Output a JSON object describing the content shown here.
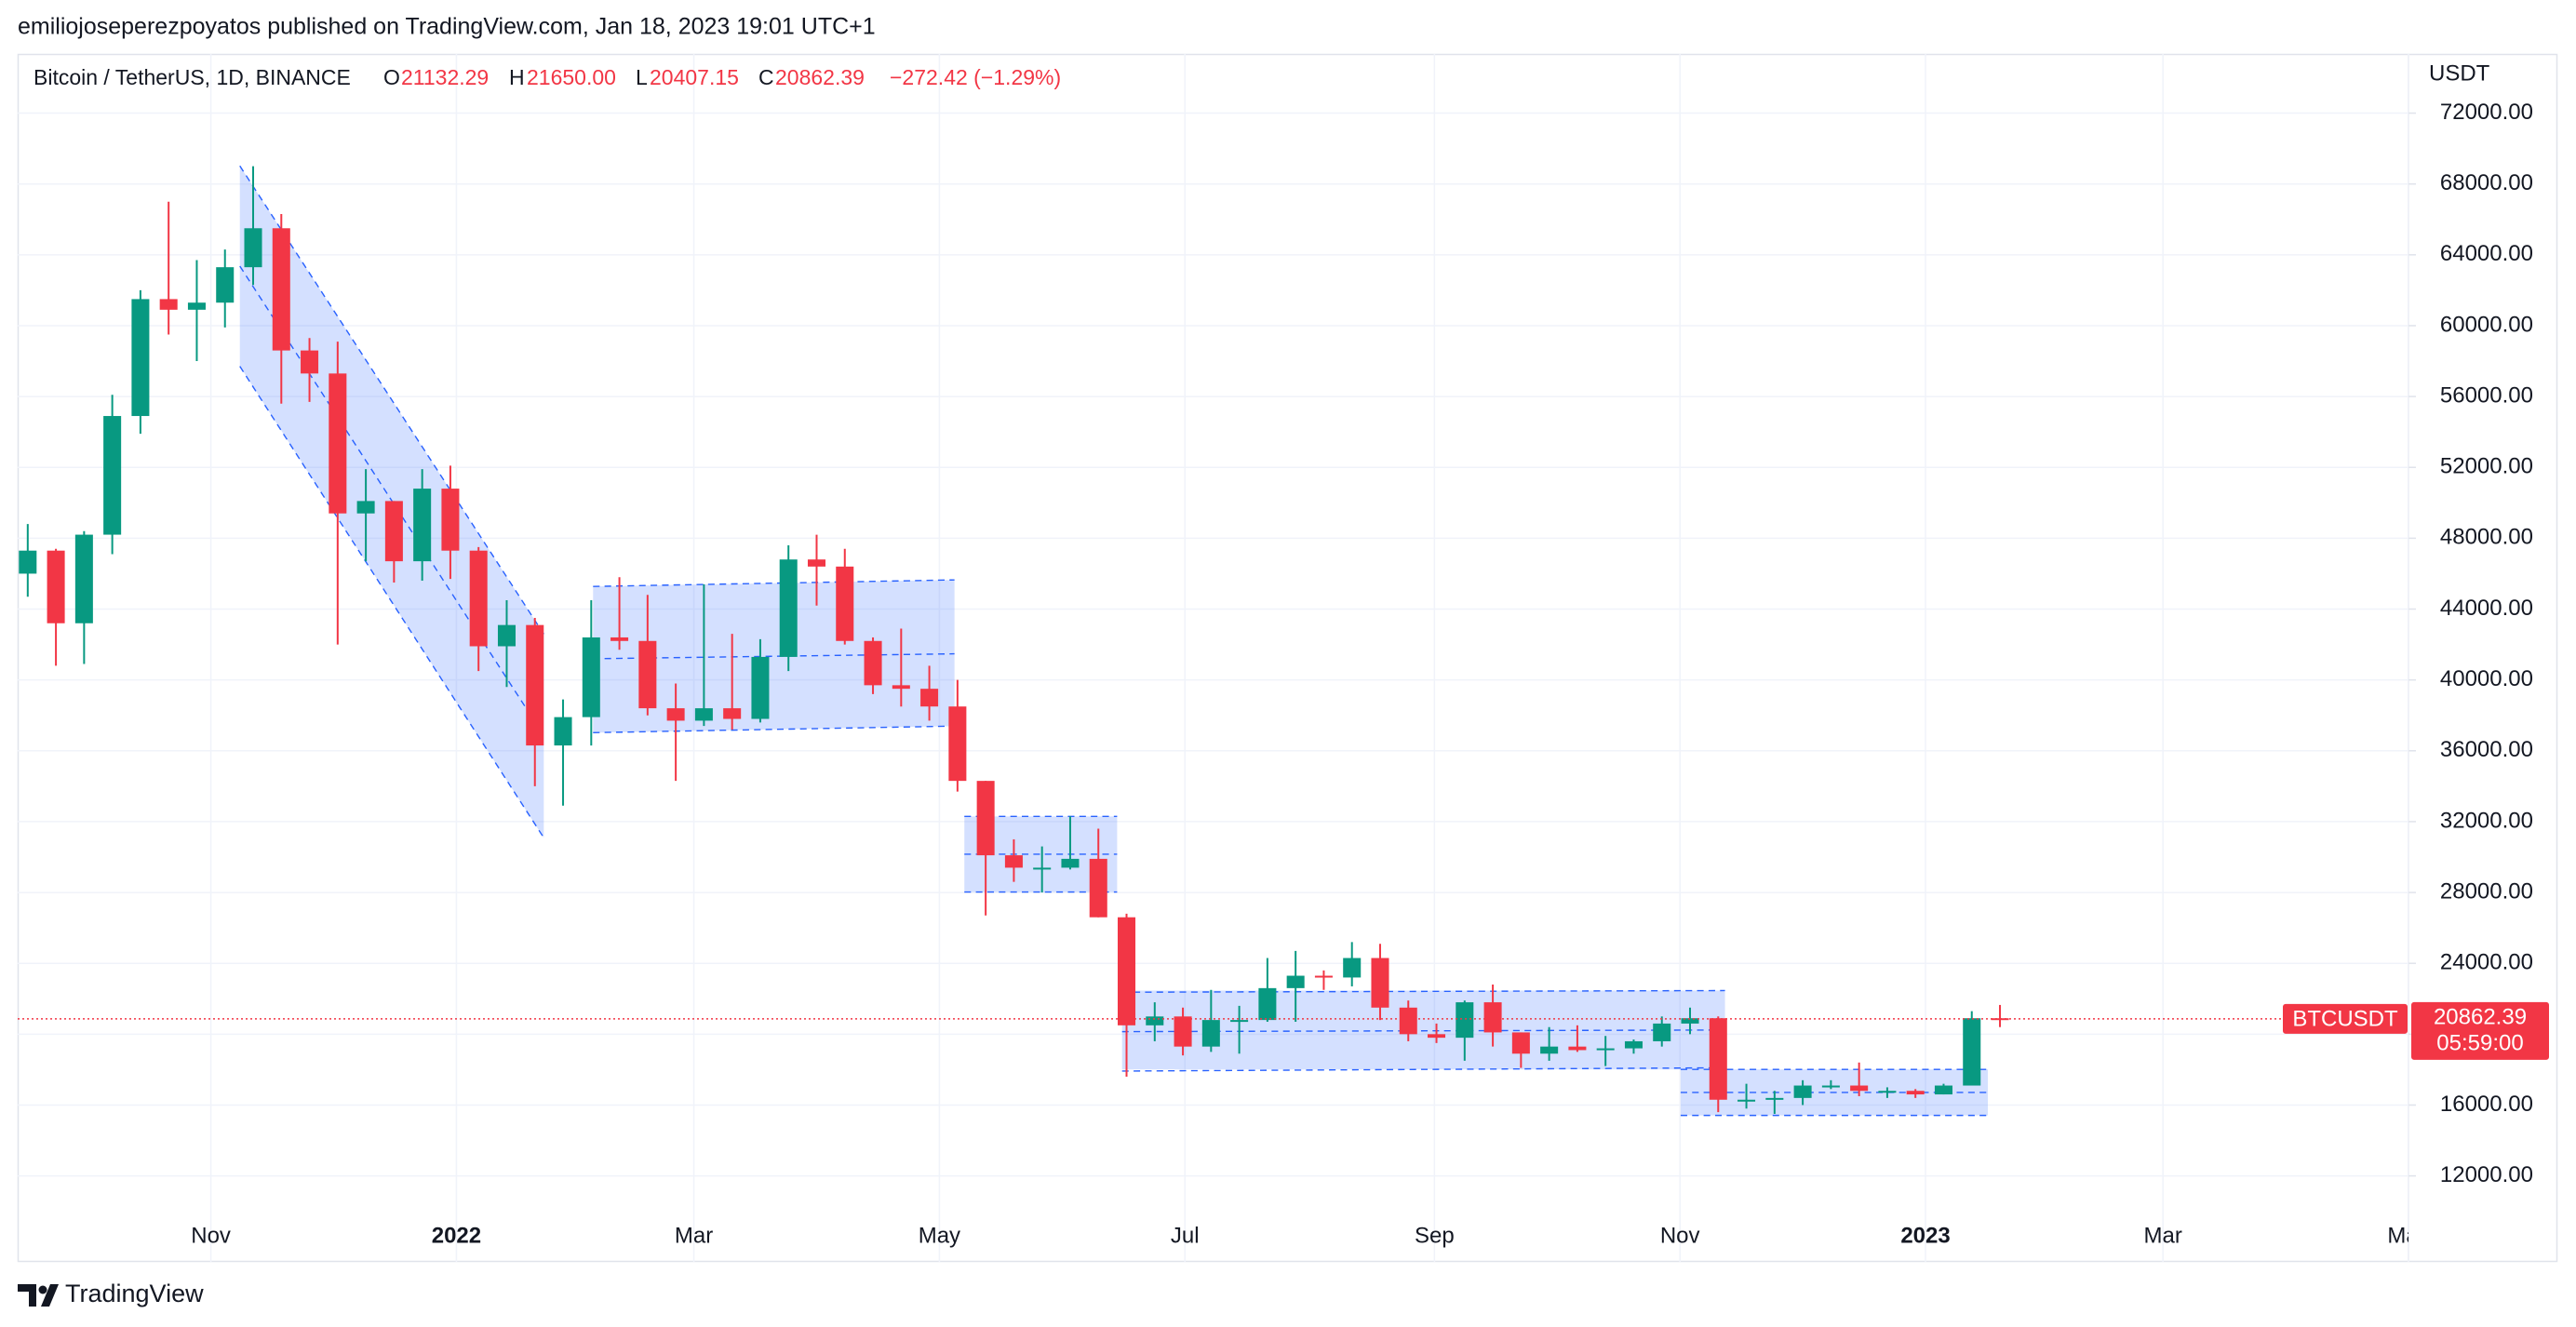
{
  "chart_data": {
    "type": "candlestick",
    "header": "emiliojoseperezpoyatos published on TradingView.com, Jan 18, 2023 19:01 UTC+1",
    "title": "Bitcoin / TetherUS, 1D, BINANCE",
    "legend": {
      "o_label": "O",
      "o": "21132.29",
      "h_label": "H",
      "h": "21650.00",
      "l_label": "L",
      "l": "20407.15",
      "c_label": "C",
      "c": "20862.39",
      "change": "−272.42 (−1.29%)"
    },
    "y_unit": "USDT",
    "symbol": "BTCUSDT",
    "last_price": {
      "value": 20862.39,
      "label": "20862.39"
    },
    "countdown": "05:59:00",
    "footer": "TradingView",
    "up_color": "#089981",
    "down_color": "#f23645",
    "x": [
      "2021-09-13",
      "2021-09-20",
      "2021-09-27",
      "2021-10-04",
      "2021-10-11",
      "2021-10-18",
      "2021-10-25",
      "2021-11-01",
      "2021-11-08",
      "2021-11-15",
      "2021-11-22",
      "2021-11-29",
      "2021-12-06",
      "2021-12-13",
      "2021-12-20",
      "2021-12-27",
      "2022-01-03",
      "2022-01-10",
      "2022-01-17",
      "2022-01-24",
      "2022-01-31",
      "2022-02-07",
      "2022-02-14",
      "2022-02-21",
      "2022-02-28",
      "2022-03-07",
      "2022-03-14",
      "2022-03-21",
      "2022-03-28",
      "2022-04-04",
      "2022-04-11",
      "2022-04-18",
      "2022-04-25",
      "2022-05-02",
      "2022-05-09",
      "2022-05-16",
      "2022-05-23",
      "2022-05-30",
      "2022-06-06",
      "2022-06-13",
      "2022-06-20",
      "2022-06-27",
      "2022-07-04",
      "2022-07-11",
      "2022-07-18",
      "2022-07-25",
      "2022-08-01",
      "2022-08-08",
      "2022-08-15",
      "2022-08-22",
      "2022-08-29",
      "2022-09-05",
      "2022-09-12",
      "2022-09-19",
      "2022-09-26",
      "2022-10-03",
      "2022-10-10",
      "2022-10-17",
      "2022-10-24",
      "2022-10-31",
      "2022-11-07",
      "2022-11-14",
      "2022-11-21",
      "2022-11-28",
      "2022-12-05",
      "2022-12-12",
      "2022-12-19",
      "2022-12-26",
      "2023-01-02",
      "2023-01-09",
      "2023-01-16"
    ],
    "open": [
      46000,
      47300,
      43200,
      48200,
      54900,
      61500,
      60900,
      61300,
      63300,
      65500,
      58600,
      57300,
      49400,
      50100,
      46700,
      50800,
      47300,
      41900,
      43100,
      36300,
      37900,
      42400,
      42200,
      38400,
      37700,
      38400,
      37800,
      41300,
      46800,
      46400,
      42200,
      39700,
      39500,
      38500,
      34300,
      30100,
      29400,
      29400,
      29900,
      26600,
      20500,
      21000,
      19300,
      20800,
      20800,
      22600,
      23300,
      23200,
      24300,
      21500,
      20000,
      19800,
      21800,
      20100,
      18900,
      19300,
      19100,
      19200,
      19600,
      20600,
      20900,
      16300,
      16300,
      16400,
      17100,
      17100,
      16800,
      16800,
      16600,
      17100,
      20900
    ],
    "high": [
      48800,
      47400,
      48400,
      56100,
      62000,
      67000,
      63700,
      64300,
      69000,
      66300,
      59300,
      59100,
      51900,
      50100,
      51900,
      52100,
      47500,
      44500,
      43500,
      38900,
      44500,
      45800,
      44800,
      39800,
      45400,
      42600,
      42300,
      47600,
      48200,
      47400,
      42400,
      42900,
      40800,
      40000,
      34300,
      31000,
      30600,
      32300,
      31600,
      26800,
      21800,
      21500,
      22500,
      21600,
      24300,
      24700,
      23600,
      25200,
      25100,
      21900,
      20600,
      21900,
      22800,
      20100,
      20400,
      20500,
      19900,
      19700,
      21000,
      21500,
      21000,
      17200,
      16800,
      17400,
      17400,
      18400,
      17000,
      16900,
      17200,
      21300,
      21650
    ],
    "low": [
      44700,
      40800,
      40900,
      47100,
      53900,
      59500,
      58000,
      59900,
      62300,
      55600,
      55700,
      42000,
      46700,
      45500,
      45600,
      45700,
      40500,
      39600,
      34000,
      32900,
      36300,
      41700,
      38000,
      34300,
      37400,
      37200,
      37600,
      40500,
      44200,
      42000,
      39200,
      38500,
      37700,
      33700,
      26700,
      28600,
      28000,
      29300,
      26600,
      17600,
      19600,
      18800,
      19000,
      18900,
      20700,
      20700,
      22500,
      22700,
      20800,
      19600,
      19500,
      18500,
      19300,
      18100,
      18500,
      19000,
      18200,
      18900,
      19300,
      20000,
      15600,
      15800,
      15500,
      16000,
      16900,
      16500,
      16400,
      16400,
      16600,
      17100,
      20400
    ],
    "close": [
      47300,
      43200,
      48200,
      54900,
      61500,
      60900,
      61300,
      63300,
      65500,
      58600,
      57300,
      49400,
      50100,
      46700,
      50800,
      47300,
      41900,
      43100,
      36300,
      37900,
      42400,
      42200,
      38400,
      37700,
      38400,
      37800,
      41300,
      46800,
      46400,
      42200,
      39700,
      39500,
      38500,
      34300,
      30100,
      29400,
      29400,
      29900,
      26600,
      20500,
      21000,
      19300,
      20800,
      20800,
      22600,
      23300,
      23200,
      24300,
      21500,
      20000,
      19800,
      21800,
      20100,
      18900,
      19300,
      19100,
      19200,
      19600,
      20600,
      20900,
      16300,
      16300,
      16400,
      17100,
      17100,
      16800,
      16800,
      16600,
      17100,
      20900,
      20862.39
    ],
    "xlim": [
      "2021-09-14",
      "2023-05-01"
    ],
    "xticks": [
      {
        "value": "2021-11-01",
        "label": "Nov"
      },
      {
        "value": "2022-01-01",
        "label": "2022"
      },
      {
        "value": "2022-03-01",
        "label": "Mar"
      },
      {
        "value": "2022-05-01",
        "label": "May"
      },
      {
        "value": "2022-07-01",
        "label": "Jul"
      },
      {
        "value": "2022-09-01",
        "label": "Sep"
      },
      {
        "value": "2022-11-01",
        "label": "Nov"
      },
      {
        "value": "2023-01-01",
        "label": "2023"
      },
      {
        "value": "2023-03-01",
        "label": "Mar"
      },
      {
        "value": "2023-05-01",
        "label": "May"
      }
    ],
    "ylim": [
      9773,
      75339
    ],
    "yticks": [
      {
        "value": 12000,
        "label": "12000.00"
      },
      {
        "value": 16000,
        "label": "16000.00"
      },
      {
        "value": 20000,
        "label": "20000.00"
      },
      {
        "value": 24000,
        "label": "24000.00"
      },
      {
        "value": 28000,
        "label": "28000.00"
      },
      {
        "value": 32000,
        "label": "32000.00"
      },
      {
        "value": 36000,
        "label": "36000.00"
      },
      {
        "value": 40000,
        "label": "40000.00"
      },
      {
        "value": 44000,
        "label": "44000.00"
      },
      {
        "value": 48000,
        "label": "48000.00"
      },
      {
        "value": 52000,
        "label": "52000.00"
      },
      {
        "value": 56000,
        "label": "56000.00"
      },
      {
        "value": 60000,
        "label": "60000.00"
      },
      {
        "value": 64000,
        "label": "64000.00"
      },
      {
        "value": 68000,
        "label": "68000.00"
      },
      {
        "value": 72000,
        "label": "72000.00"
      }
    ],
    "grid": true
  }
}
